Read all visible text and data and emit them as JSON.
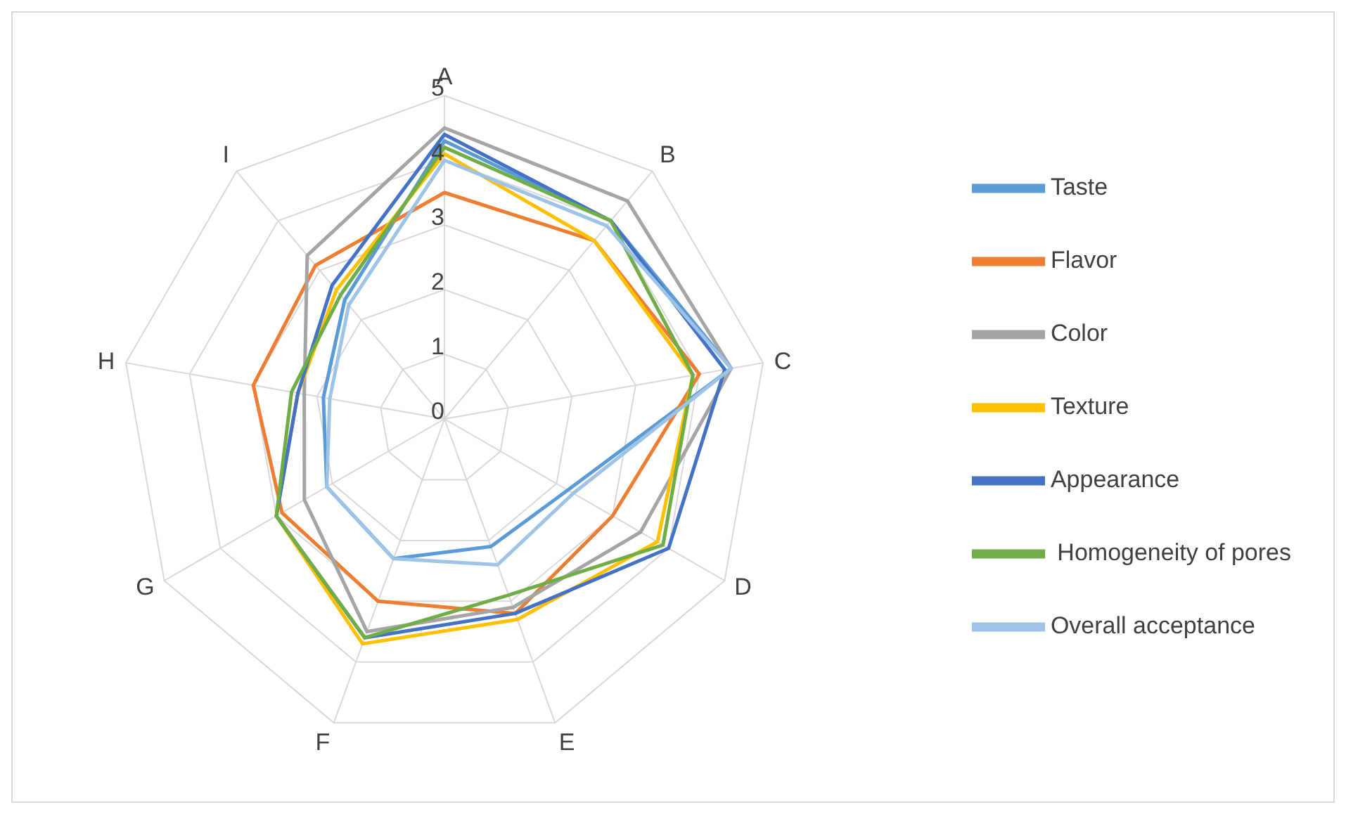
{
  "chart_data": {
    "type": "radar",
    "categories": [
      "A",
      "B",
      "C",
      "D",
      "E",
      "F",
      "G",
      "H",
      "I"
    ],
    "ylim": [
      0,
      5
    ],
    "yticks": [
      0,
      1,
      2,
      3,
      4,
      5
    ],
    "grid": true,
    "legend": "right",
    "series": [
      {
        "name": "Taste",
        "color": "#5b9bd5",
        "values": [
          4.3,
          4.0,
          4.5,
          2.2,
          2.1,
          2.3,
          2.1,
          1.9,
          2.4
        ]
      },
      {
        "name": "Flavor",
        "color": "#ed7d31",
        "values": [
          3.5,
          3.6,
          4.0,
          3.0,
          3.2,
          3.0,
          2.9,
          3.0,
          3.1
        ]
      },
      {
        "name": "Color",
        "color": "#a5a5a5",
        "values": [
          4.5,
          4.4,
          4.5,
          3.5,
          3.1,
          3.5,
          2.5,
          2.2,
          3.3
        ]
      },
      {
        "name": "Texture",
        "color": "#ffc000",
        "values": [
          4.1,
          3.6,
          3.9,
          3.8,
          3.3,
          3.7,
          3.0,
          2.3,
          2.6
        ]
      },
      {
        "name": "Appearance",
        "color": "#4472c4",
        "values": [
          4.4,
          4.0,
          4.4,
          4.0,
          3.2,
          3.6,
          3.0,
          2.3,
          2.7
        ]
      },
      {
        "name": " Homogeneity of pores",
        "color": "#70ad47",
        "values": [
          4.2,
          4.0,
          3.9,
          3.9,
          2.9,
          3.6,
          3.0,
          2.4,
          2.5
        ]
      },
      {
        "name": "Overall acceptance",
        "color": "#9dc3e6",
        "values": [
          4.0,
          3.9,
          4.5,
          2.3,
          2.4,
          2.3,
          2.1,
          1.8,
          2.3
        ]
      }
    ]
  }
}
